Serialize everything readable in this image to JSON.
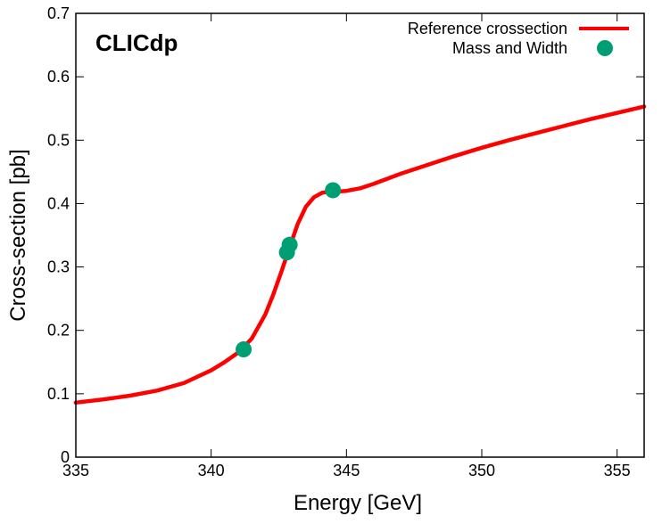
{
  "chart_data": {
    "type": "line",
    "watermark": "CLICdp",
    "xlabel": "Energy [GeV]",
    "ylabel": "Cross-section [pb]",
    "xlim": [
      335,
      356
    ],
    "ylim": [
      0,
      0.7
    ],
    "xticks": [
      335,
      340,
      345,
      350,
      355
    ],
    "yticks": [
      0,
      0.1,
      0.2,
      0.3,
      0.4,
      0.5,
      0.6,
      0.7
    ],
    "xtick_labels": [
      "335",
      "340",
      "345",
      "350",
      "355"
    ],
    "ytick_labels": [
      "0",
      "0.1",
      "0.2",
      "0.3",
      "0.4",
      "0.5",
      "0.6",
      "0.7"
    ],
    "legend_position": "top-right",
    "colors": {
      "line": "#ff0000",
      "points": "#009e73"
    },
    "series": [
      {
        "name": "Reference crossection",
        "kind": "line",
        "x": [
          335,
          336,
          337,
          338,
          339,
          340,
          340.5,
          341,
          341.5,
          342,
          342.3,
          342.6,
          342.9,
          343.2,
          343.5,
          343.8,
          344.1,
          344.4,
          344.7,
          345,
          345.5,
          346,
          347,
          348,
          349,
          350,
          351,
          352,
          353,
          354,
          355,
          356
        ],
        "y": [
          0.086,
          0.091,
          0.097,
          0.105,
          0.117,
          0.137,
          0.15,
          0.165,
          0.187,
          0.225,
          0.257,
          0.293,
          0.331,
          0.368,
          0.395,
          0.41,
          0.417,
          0.419,
          0.419,
          0.42,
          0.424,
          0.431,
          0.447,
          0.461,
          0.475,
          0.488,
          0.5,
          0.511,
          0.522,
          0.533,
          0.543,
          0.553
        ]
      },
      {
        "name": "Mass and Width",
        "kind": "scatter",
        "x": [
          341.2,
          342.8,
          342.9,
          344.5
        ],
        "y": [
          0.17,
          0.323,
          0.335,
          0.421
        ]
      }
    ]
  }
}
